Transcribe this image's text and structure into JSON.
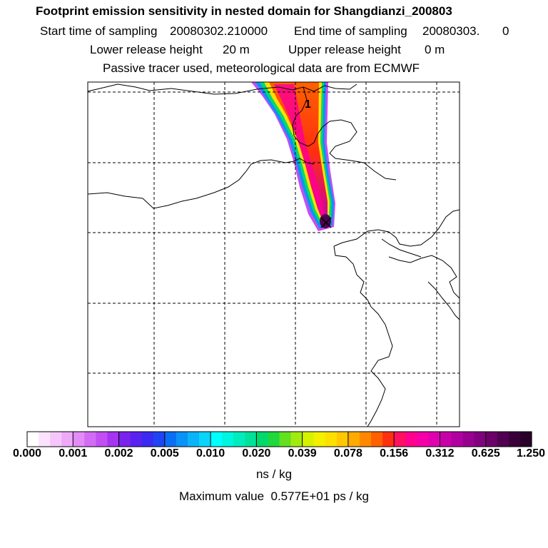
{
  "header": {
    "title": "Footprint emission sensitivity in nested domain for Shangdianzi_200803",
    "start_label": "Start time of sampling",
    "start_value": "20080302.210000",
    "end_label": "End time of sampling",
    "end_value": "20080303.",
    "end_suffix": "0",
    "lower_label": "Lower release height",
    "lower_value": "20 m",
    "upper_label": "Upper release height",
    "upper_value": "0 m",
    "tracer_note": "Passive tracer used, meteorological data are from ECMWF"
  },
  "map": {
    "release_marker_label": "1",
    "release_point_symbol": "X"
  },
  "colorbar": {
    "tick_labels": [
      "0.000",
      "0.001",
      "0.002",
      "0.005",
      "0.010",
      "0.020",
      "0.039",
      "0.078",
      "0.156",
      "0.312",
      "0.625",
      "1.250"
    ],
    "colors": [
      "#ffffff",
      "#fbe3fd",
      "#f6c6fb",
      "#efa9f9",
      "#e38bf7",
      "#d36cf5",
      "#c24ff3",
      "#a535f0",
      "#7a22ee",
      "#5a22f0",
      "#3a2af2",
      "#1f44f4",
      "#0a6ef5",
      "#0a92f6",
      "#0ab4f8",
      "#0ad4f9",
      "#00ffff",
      "#00f5e0",
      "#00ecbd",
      "#00e29a",
      "#00d96c",
      "#1ed83d",
      "#63e020",
      "#a3ea10",
      "#d7f200",
      "#f3f000",
      "#fee000",
      "#ffc800",
      "#ffaa00",
      "#ff8800",
      "#ff6000",
      "#ff3010",
      "#ff1060",
      "#ff0090",
      "#f500a8",
      "#e000b0",
      "#c800a8",
      "#b000a0",
      "#980090",
      "#800080",
      "#6a0068",
      "#500050",
      "#3a003a",
      "#280028"
    ],
    "units": "ns / kg"
  },
  "footer": {
    "max_label": "Maximum value",
    "max_value": "0.577E+01 ps / kg"
  }
}
